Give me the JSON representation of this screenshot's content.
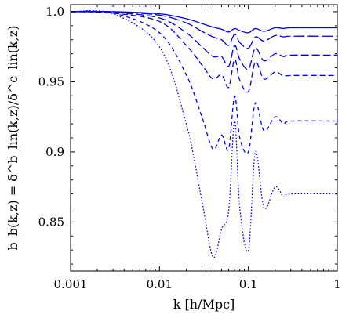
{
  "chart_data": {
    "type": "line",
    "title": "",
    "xlabel": "k [h/Mpc]",
    "ylabel": "b_b(k,z) = δ^b_lin(k,z)/δ^c_lin(k,z)",
    "x_scale": "log",
    "xlim": [
      0.001,
      1
    ],
    "ylim": [
      0.815,
      1.005
    ],
    "grid": false,
    "legend": "none",
    "line_color": "#0000e6",
    "x_ticks": [
      {
        "value": 0.001,
        "label": "0.001"
      },
      {
        "value": 0.01,
        "label": "0.01"
      },
      {
        "value": 0.1,
        "label": "0.1"
      },
      {
        "value": 1,
        "label": "1"
      }
    ],
    "y_ticks": [
      {
        "value": 1.0,
        "label": "1.0"
      },
      {
        "value": 0.95,
        "label": "0.95"
      },
      {
        "value": 0.9,
        "label": "0.9"
      },
      {
        "value": 0.85,
        "label": "0.85"
      }
    ],
    "series": [
      {
        "style": "solid",
        "values": [
          [
            0.001,
            1.0
          ],
          [
            0.003,
            1.0
          ],
          [
            0.01,
            0.9985
          ],
          [
            0.02,
            0.995
          ],
          [
            0.03,
            0.9915
          ],
          [
            0.04,
            0.989
          ],
          [
            0.05,
            0.9875
          ],
          [
            0.06,
            0.9855
          ],
          [
            0.07,
            0.988
          ],
          [
            0.08,
            0.9865
          ],
          [
            0.1,
            0.985
          ],
          [
            0.12,
            0.988
          ],
          [
            0.15,
            0.986
          ],
          [
            0.2,
            0.9885
          ],
          [
            0.25,
            0.988
          ],
          [
            0.3,
            0.9885
          ],
          [
            1,
            0.9885
          ]
        ]
      },
      {
        "style": "long-dash",
        "values": [
          [
            0.001,
            1.0
          ],
          [
            0.003,
            1.0
          ],
          [
            0.01,
            0.9975
          ],
          [
            0.02,
            0.992
          ],
          [
            0.03,
            0.986
          ],
          [
            0.04,
            0.982
          ],
          [
            0.05,
            0.98
          ],
          [
            0.06,
            0.976
          ],
          [
            0.07,
            0.984
          ],
          [
            0.08,
            0.978
          ],
          [
            0.1,
            0.974
          ],
          [
            0.12,
            0.982
          ],
          [
            0.15,
            0.979
          ],
          [
            0.2,
            0.983
          ],
          [
            0.25,
            0.982
          ],
          [
            0.3,
            0.9825
          ],
          [
            1,
            0.9825
          ]
        ]
      },
      {
        "style": "dash",
        "values": [
          [
            0.001,
            1.0
          ],
          [
            0.003,
            0.9995
          ],
          [
            0.01,
            0.9955
          ],
          [
            0.02,
            0.985
          ],
          [
            0.03,
            0.975
          ],
          [
            0.04,
            0.968
          ],
          [
            0.05,
            0.968
          ],
          [
            0.06,
            0.961
          ],
          [
            0.07,
            0.976
          ],
          [
            0.08,
            0.966
          ],
          [
            0.1,
            0.959
          ],
          [
            0.12,
            0.974
          ],
          [
            0.15,
            0.965
          ],
          [
            0.2,
            0.97
          ],
          [
            0.25,
            0.968
          ],
          [
            0.3,
            0.969
          ],
          [
            1,
            0.969
          ]
        ]
      },
      {
        "style": "medium-dash",
        "values": [
          [
            0.001,
            1.0
          ],
          [
            0.003,
            0.999
          ],
          [
            0.01,
            0.993
          ],
          [
            0.02,
            0.976
          ],
          [
            0.03,
            0.962
          ],
          [
            0.04,
            0.952
          ],
          [
            0.05,
            0.955
          ],
          [
            0.06,
            0.946
          ],
          [
            0.07,
            0.966
          ],
          [
            0.08,
            0.951
          ],
          [
            0.1,
            0.943
          ],
          [
            0.12,
            0.964
          ],
          [
            0.15,
            0.952
          ],
          [
            0.2,
            0.957
          ],
          [
            0.25,
            0.954
          ],
          [
            0.3,
            0.9545
          ],
          [
            1,
            0.9545
          ]
        ]
      },
      {
        "style": "short-dash",
        "values": [
          [
            0.001,
            1.0
          ],
          [
            0.003,
            0.999
          ],
          [
            0.01,
            0.985
          ],
          [
            0.02,
            0.955
          ],
          [
            0.03,
            0.925
          ],
          [
            0.04,
            0.902
          ],
          [
            0.05,
            0.912
          ],
          [
            0.06,
            0.902
          ],
          [
            0.07,
            0.94
          ],
          [
            0.08,
            0.91
          ],
          [
            0.1,
            0.9
          ],
          [
            0.12,
            0.935
          ],
          [
            0.15,
            0.915
          ],
          [
            0.2,
            0.925
          ],
          [
            0.25,
            0.92
          ],
          [
            0.3,
            0.922
          ],
          [
            1,
            0.922
          ]
        ]
      },
      {
        "style": "dotted",
        "values": [
          [
            0.001,
            1.0
          ],
          [
            0.003,
            0.9985
          ],
          [
            0.01,
            0.975
          ],
          [
            0.02,
            0.92
          ],
          [
            0.03,
            0.865
          ],
          [
            0.04,
            0.825
          ],
          [
            0.05,
            0.845
          ],
          [
            0.06,
            0.858
          ],
          [
            0.07,
            0.922
          ],
          [
            0.08,
            0.86
          ],
          [
            0.1,
            0.83
          ],
          [
            0.12,
            0.9
          ],
          [
            0.15,
            0.86
          ],
          [
            0.2,
            0.875
          ],
          [
            0.25,
            0.868
          ],
          [
            0.3,
            0.87
          ],
          [
            1,
            0.87
          ]
        ]
      }
    ]
  }
}
